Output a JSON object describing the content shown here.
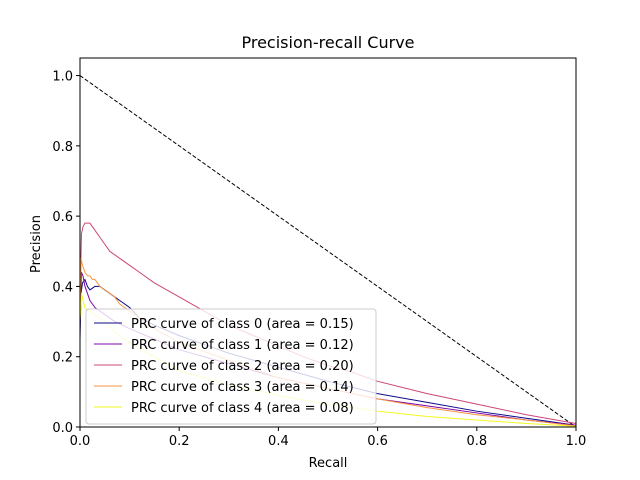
{
  "chart_data": {
    "type": "line",
    "title": "Precision-recall Curve",
    "xlabel": "Recall",
    "ylabel": "Precision",
    "xlim": [
      0.0,
      1.0
    ],
    "ylim": [
      0.0,
      1.05
    ],
    "xticks": [
      "0.0",
      "0.2",
      "0.4",
      "0.6",
      "0.8",
      "1.0"
    ],
    "yticks": [
      "0.0",
      "0.2",
      "0.4",
      "0.6",
      "0.8",
      "1.0"
    ],
    "grid": false,
    "legend_position": "lower-left",
    "reference_line": {
      "points": [
        [
          0.0,
          1.0
        ],
        [
          1.0,
          0.0
        ]
      ],
      "style": "dashed",
      "color": "#000000"
    },
    "series": [
      {
        "name": "PRC curve of class 0 (area = 0.15)",
        "color": "#0d0887",
        "points": [
          [
            0.0,
            0.25
          ],
          [
            0.002,
            0.38
          ],
          [
            0.005,
            0.41
          ],
          [
            0.01,
            0.42
          ],
          [
            0.015,
            0.4
          ],
          [
            0.02,
            0.39
          ],
          [
            0.03,
            0.4
          ],
          [
            0.04,
            0.4
          ],
          [
            0.05,
            0.39
          ],
          [
            0.06,
            0.38
          ],
          [
            0.07,
            0.37
          ],
          [
            0.08,
            0.36
          ],
          [
            0.09,
            0.35
          ],
          [
            0.1,
            0.34
          ],
          [
            0.12,
            0.31
          ],
          [
            0.15,
            0.29
          ],
          [
            0.2,
            0.26
          ],
          [
            0.3,
            0.21
          ],
          [
            0.4,
            0.17
          ],
          [
            0.5,
            0.13
          ],
          [
            0.6,
            0.095
          ],
          [
            0.7,
            0.07
          ],
          [
            0.8,
            0.045
          ],
          [
            0.9,
            0.025
          ],
          [
            1.0,
            0.005
          ]
        ]
      },
      {
        "name": "PRC curve of class 1 (area = 0.12)",
        "color": "#7e03a8",
        "points": [
          [
            0.0,
            0.3
          ],
          [
            0.003,
            0.44
          ],
          [
            0.006,
            0.43
          ],
          [
            0.01,
            0.4
          ],
          [
            0.015,
            0.38
          ],
          [
            0.02,
            0.36
          ],
          [
            0.025,
            0.35
          ],
          [
            0.03,
            0.34
          ],
          [
            0.04,
            0.33
          ],
          [
            0.05,
            0.32
          ],
          [
            0.07,
            0.3
          ],
          [
            0.1,
            0.28
          ],
          [
            0.15,
            0.25
          ],
          [
            0.2,
            0.22
          ],
          [
            0.3,
            0.18
          ],
          [
            0.4,
            0.14
          ],
          [
            0.5,
            0.11
          ],
          [
            0.6,
            0.08
          ],
          [
            0.7,
            0.06
          ],
          [
            0.8,
            0.04
          ],
          [
            0.9,
            0.02
          ],
          [
            1.0,
            0.005
          ]
        ]
      },
      {
        "name": "PRC curve of class 2 (area = 0.20)",
        "color": "#cc4778",
        "points": [
          [
            0.0,
            0.35
          ],
          [
            0.003,
            0.55
          ],
          [
            0.006,
            0.57
          ],
          [
            0.01,
            0.58
          ],
          [
            0.02,
            0.58
          ],
          [
            0.025,
            0.57
          ],
          [
            0.03,
            0.56
          ],
          [
            0.04,
            0.54
          ],
          [
            0.05,
            0.52
          ],
          [
            0.06,
            0.5
          ],
          [
            0.07,
            0.49
          ],
          [
            0.08,
            0.48
          ],
          [
            0.09,
            0.47
          ],
          [
            0.1,
            0.46
          ],
          [
            0.12,
            0.44
          ],
          [
            0.15,
            0.41
          ],
          [
            0.2,
            0.37
          ],
          [
            0.25,
            0.33
          ],
          [
            0.3,
            0.29
          ],
          [
            0.35,
            0.26
          ],
          [
            0.4,
            0.23
          ],
          [
            0.45,
            0.2
          ],
          [
            0.5,
            0.175
          ],
          [
            0.55,
            0.155
          ],
          [
            0.6,
            0.13
          ],
          [
            0.7,
            0.095
          ],
          [
            0.8,
            0.065
          ],
          [
            0.9,
            0.035
          ],
          [
            1.0,
            0.01
          ]
        ]
      },
      {
        "name": "PRC curve of class 3 (area = 0.14)",
        "color": "#f89540",
        "points": [
          [
            0.0,
            0.3
          ],
          [
            0.002,
            0.48
          ],
          [
            0.005,
            0.46
          ],
          [
            0.01,
            0.44
          ],
          [
            0.015,
            0.43
          ],
          [
            0.02,
            0.43
          ],
          [
            0.025,
            0.42
          ],
          [
            0.03,
            0.42
          ],
          [
            0.04,
            0.4
          ],
          [
            0.05,
            0.39
          ],
          [
            0.06,
            0.38
          ],
          [
            0.07,
            0.37
          ],
          [
            0.08,
            0.35
          ],
          [
            0.09,
            0.34
          ],
          [
            0.1,
            0.33
          ],
          [
            0.12,
            0.31
          ],
          [
            0.15,
            0.28
          ],
          [
            0.2,
            0.24
          ],
          [
            0.3,
            0.19
          ],
          [
            0.4,
            0.14
          ],
          [
            0.5,
            0.11
          ],
          [
            0.6,
            0.08
          ],
          [
            0.7,
            0.055
          ],
          [
            0.8,
            0.035
          ],
          [
            0.9,
            0.02
          ],
          [
            1.0,
            0.003
          ]
        ]
      },
      {
        "name": "PRC curve of class 4 (area = 0.08)",
        "color": "#f0f921",
        "points": [
          [
            0.0,
            0.3
          ],
          [
            0.003,
            0.38
          ],
          [
            0.006,
            0.36
          ],
          [
            0.01,
            0.34
          ],
          [
            0.015,
            0.33
          ],
          [
            0.02,
            0.33
          ],
          [
            0.03,
            0.32
          ],
          [
            0.05,
            0.3
          ],
          [
            0.07,
            0.27
          ],
          [
            0.1,
            0.24
          ],
          [
            0.15,
            0.2
          ],
          [
            0.2,
            0.16
          ],
          [
            0.3,
            0.12
          ],
          [
            0.4,
            0.09
          ],
          [
            0.5,
            0.065
          ],
          [
            0.6,
            0.045
          ],
          [
            0.7,
            0.03
          ],
          [
            0.8,
            0.02
          ],
          [
            0.9,
            0.01
          ],
          [
            1.0,
            0.002
          ]
        ]
      }
    ]
  }
}
